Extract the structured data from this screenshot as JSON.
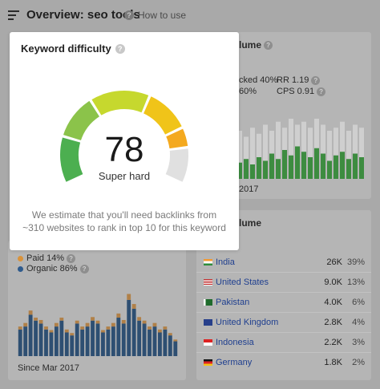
{
  "header": {
    "title": "Overview: seo tools",
    "help_label": "How to use"
  },
  "keyword_difficulty": {
    "title": "Keyword difficulty",
    "score": "78",
    "score_value": 78,
    "rating": "Super hard",
    "estimate": "We estimate that you'll need backlinks from ~310 websites to rank in top 10 for this keyword",
    "colors": [
      "#4caf50",
      "#8bc34a",
      "#c6d82e",
      "#f0c419",
      "#f4a91f",
      "#e0e0e0"
    ]
  },
  "search_volume": {
    "title_fragment": "lume",
    "clicked_fragment": "cked 40%",
    "no_clicks_fragment": "60%",
    "rr_label": "RR 1.19",
    "cps_label": "CPS 0.91",
    "since_fragment": "2017",
    "bar_color": "#4caf50",
    "bar_bg_color": "#cfcfcf",
    "bars": [
      0.45,
      0.55,
      0.4,
      0.6,
      0.5,
      0.7,
      0.55,
      0.8,
      0.65,
      0.9,
      0.75,
      0.6,
      0.85,
      0.7,
      0.5,
      0.65,
      0.75,
      0.55,
      0.7,
      0.6
    ],
    "bars_bg": [
      0.8,
      0.7,
      0.85,
      0.75,
      0.9,
      0.8,
      0.95,
      0.85,
      1.0,
      0.9,
      0.95,
      0.85,
      1.0,
      0.9,
      0.8,
      0.85,
      0.95,
      0.8,
      0.9,
      0.85
    ]
  },
  "global_volume": {
    "title_fragment": "lume",
    "countries": [
      {
        "flag": "in",
        "name": "India",
        "volume": "26K",
        "pct": "39%"
      },
      {
        "flag": "us",
        "name": "United States",
        "volume": "9.0K",
        "pct": "13%"
      },
      {
        "flag": "pk",
        "name": "Pakistan",
        "volume": "4.0K",
        "pct": "6%"
      },
      {
        "flag": "gb",
        "name": "United Kingdom",
        "volume": "2.8K",
        "pct": "4%"
      },
      {
        "flag": "id",
        "name": "Indonesia",
        "volume": "2.2K",
        "pct": "3%"
      },
      {
        "flag": "de",
        "name": "Germany",
        "volume": "1.8K",
        "pct": "2%"
      }
    ]
  },
  "traffic": {
    "paid_label": "Paid 14%",
    "organic_label": "Organic 86%",
    "since_label": "Since Mar 2017",
    "paid_color": "#d9923a",
    "organic_color": "#2e5a8c",
    "organic_bars": [
      0.45,
      0.5,
      0.7,
      0.6,
      0.55,
      0.45,
      0.4,
      0.5,
      0.6,
      0.4,
      0.35,
      0.55,
      0.45,
      0.5,
      0.6,
      0.55,
      0.4,
      0.45,
      0.5,
      0.65,
      0.55,
      0.95,
      0.8,
      0.6,
      0.55,
      0.45,
      0.5,
      0.4,
      0.45,
      0.35,
      0.25
    ],
    "paid_bars": [
      0.05,
      0.06,
      0.07,
      0.05,
      0.06,
      0.05,
      0.04,
      0.06,
      0.05,
      0.05,
      0.04,
      0.05,
      0.05,
      0.06,
      0.06,
      0.05,
      0.04,
      0.05,
      0.06,
      0.07,
      0.06,
      0.1,
      0.08,
      0.06,
      0.05,
      0.05,
      0.06,
      0.05,
      0.05,
      0.04,
      0.03
    ]
  }
}
